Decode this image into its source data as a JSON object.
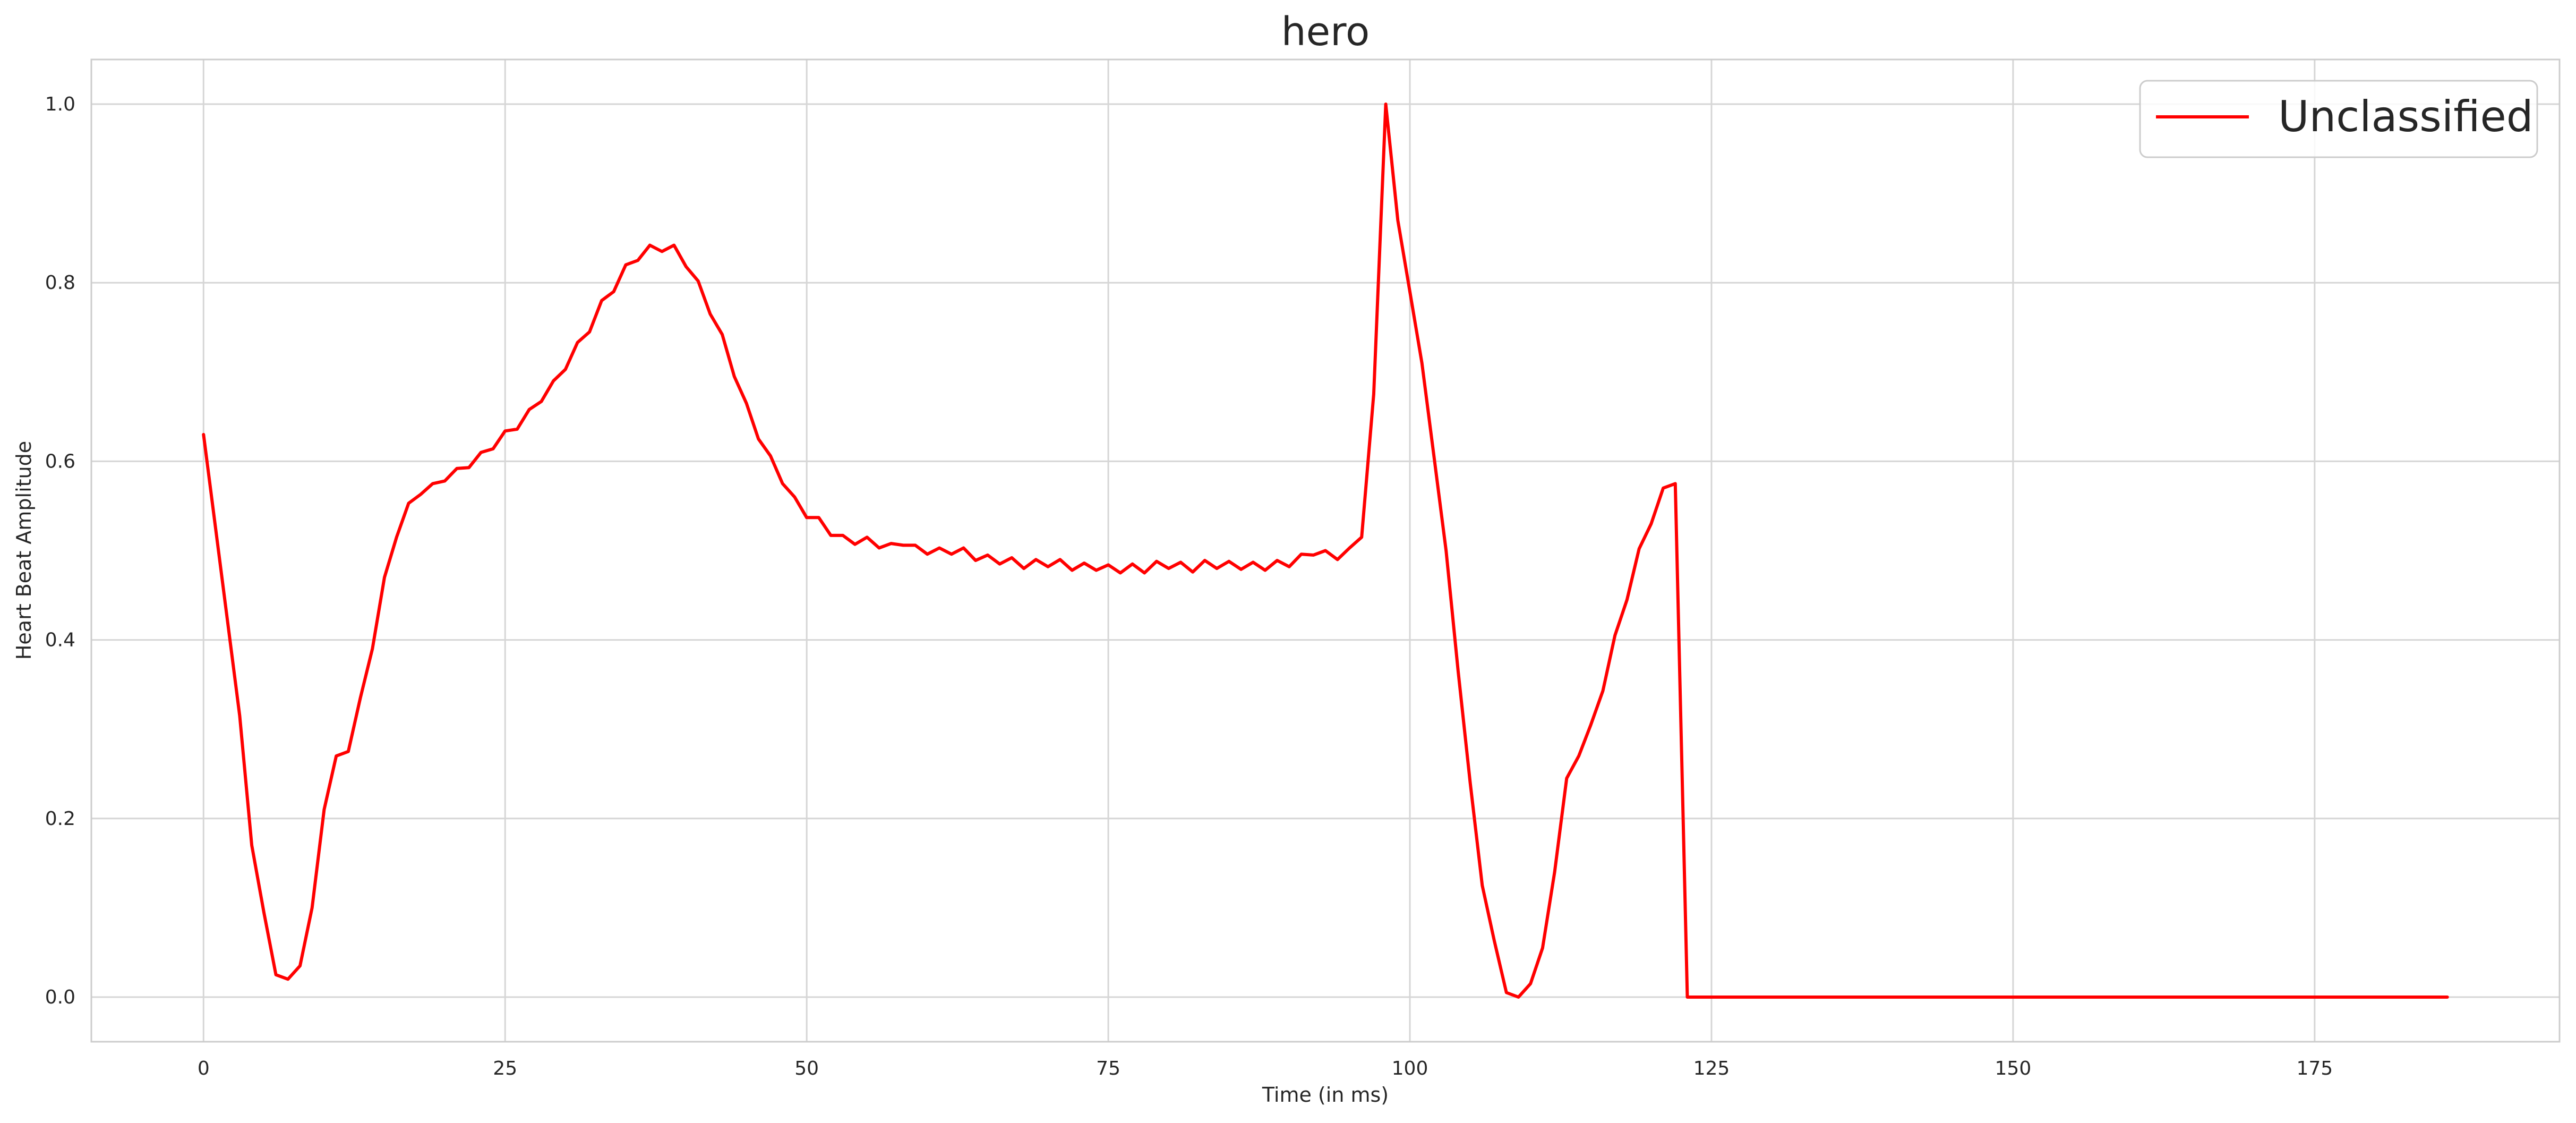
{
  "chart_data": {
    "type": "line",
    "title": "hero",
    "xlabel": "Time (in ms)",
    "ylabel": "Heart Beat Amplitude",
    "xlim": [
      -9.3,
      195.3
    ],
    "ylim": [
      -0.05,
      1.05
    ],
    "xticks": [
      0,
      25,
      50,
      75,
      100,
      125,
      150,
      175
    ],
    "yticks": [
      0.0,
      0.2,
      0.4,
      0.6,
      0.8,
      1.0
    ],
    "xtick_labels": [
      "0",
      "25",
      "50",
      "75",
      "100",
      "125",
      "150",
      "175"
    ],
    "ytick_labels": [
      "0.0",
      "0.2",
      "0.4",
      "0.6",
      "0.8",
      "1.0"
    ],
    "grid": true,
    "legend_position": "top-right",
    "series": [
      {
        "name": "Unclassified",
        "color": "#ff0000",
        "x": [
          0,
          1,
          2,
          3,
          4,
          5,
          6,
          7,
          8,
          9,
          10,
          11,
          12,
          13,
          14,
          15,
          16,
          17,
          18,
          19,
          20,
          21,
          22,
          23,
          24,
          25,
          26,
          27,
          28,
          29,
          30,
          31,
          32,
          33,
          34,
          35,
          36,
          37,
          38,
          39,
          40,
          41,
          42,
          43,
          44,
          45,
          46,
          47,
          48,
          49,
          50,
          51,
          52,
          53,
          54,
          55,
          56,
          57,
          58,
          59,
          60,
          61,
          62,
          63,
          64,
          65,
          66,
          67,
          68,
          69,
          70,
          71,
          72,
          73,
          74,
          75,
          76,
          77,
          78,
          79,
          80,
          81,
          82,
          83,
          84,
          85,
          86,
          87,
          88,
          89,
          90,
          91,
          92,
          93,
          94,
          95,
          96,
          97,
          98,
          99,
          100,
          101,
          102,
          103,
          104,
          105,
          106,
          107,
          108,
          109,
          110,
          111,
          112,
          113,
          114,
          115,
          116,
          117,
          118,
          119,
          120,
          121,
          122,
          123,
          186
        ],
        "y": [
          0.63,
          0.525,
          0.42,
          0.315,
          0.17,
          0.095,
          0.025,
          0.02,
          0.035,
          0.1,
          0.21,
          0.27,
          0.275,
          0.335,
          0.39,
          0.47,
          0.515,
          0.553,
          0.563,
          0.575,
          0.578,
          0.592,
          0.593,
          0.61,
          0.614,
          0.634,
          0.636,
          0.658,
          0.667,
          0.69,
          0.703,
          0.733,
          0.745,
          0.78,
          0.79,
          0.82,
          0.825,
          0.842,
          0.835,
          0.842,
          0.818,
          0.802,
          0.765,
          0.742,
          0.695,
          0.665,
          0.625,
          0.606,
          0.575,
          0.56,
          0.537,
          0.537,
          0.517,
          0.517,
          0.507,
          0.515,
          0.503,
          0.508,
          0.506,
          0.506,
          0.496,
          0.503,
          0.496,
          0.503,
          0.489,
          0.495,
          0.485,
          0.492,
          0.48,
          0.49,
          0.482,
          0.49,
          0.478,
          0.486,
          0.478,
          0.484,
          0.475,
          0.485,
          0.475,
          0.488,
          0.48,
          0.487,
          0.476,
          0.489,
          0.48,
          0.488,
          0.479,
          0.487,
          0.478,
          0.489,
          0.482,
          0.496,
          0.495,
          0.5,
          0.49,
          0.503,
          0.515,
          0.675,
          1.0,
          0.87,
          0.79,
          0.71,
          0.605,
          0.5,
          0.365,
          0.24,
          0.125,
          0.063,
          0.005,
          0.0,
          0.015,
          0.055,
          0.14,
          0.245,
          0.27,
          0.305,
          0.343,
          0.405,
          0.445,
          0.502,
          0.53,
          0.57,
          0.575,
          0.0,
          0.0
        ]
      }
    ]
  }
}
